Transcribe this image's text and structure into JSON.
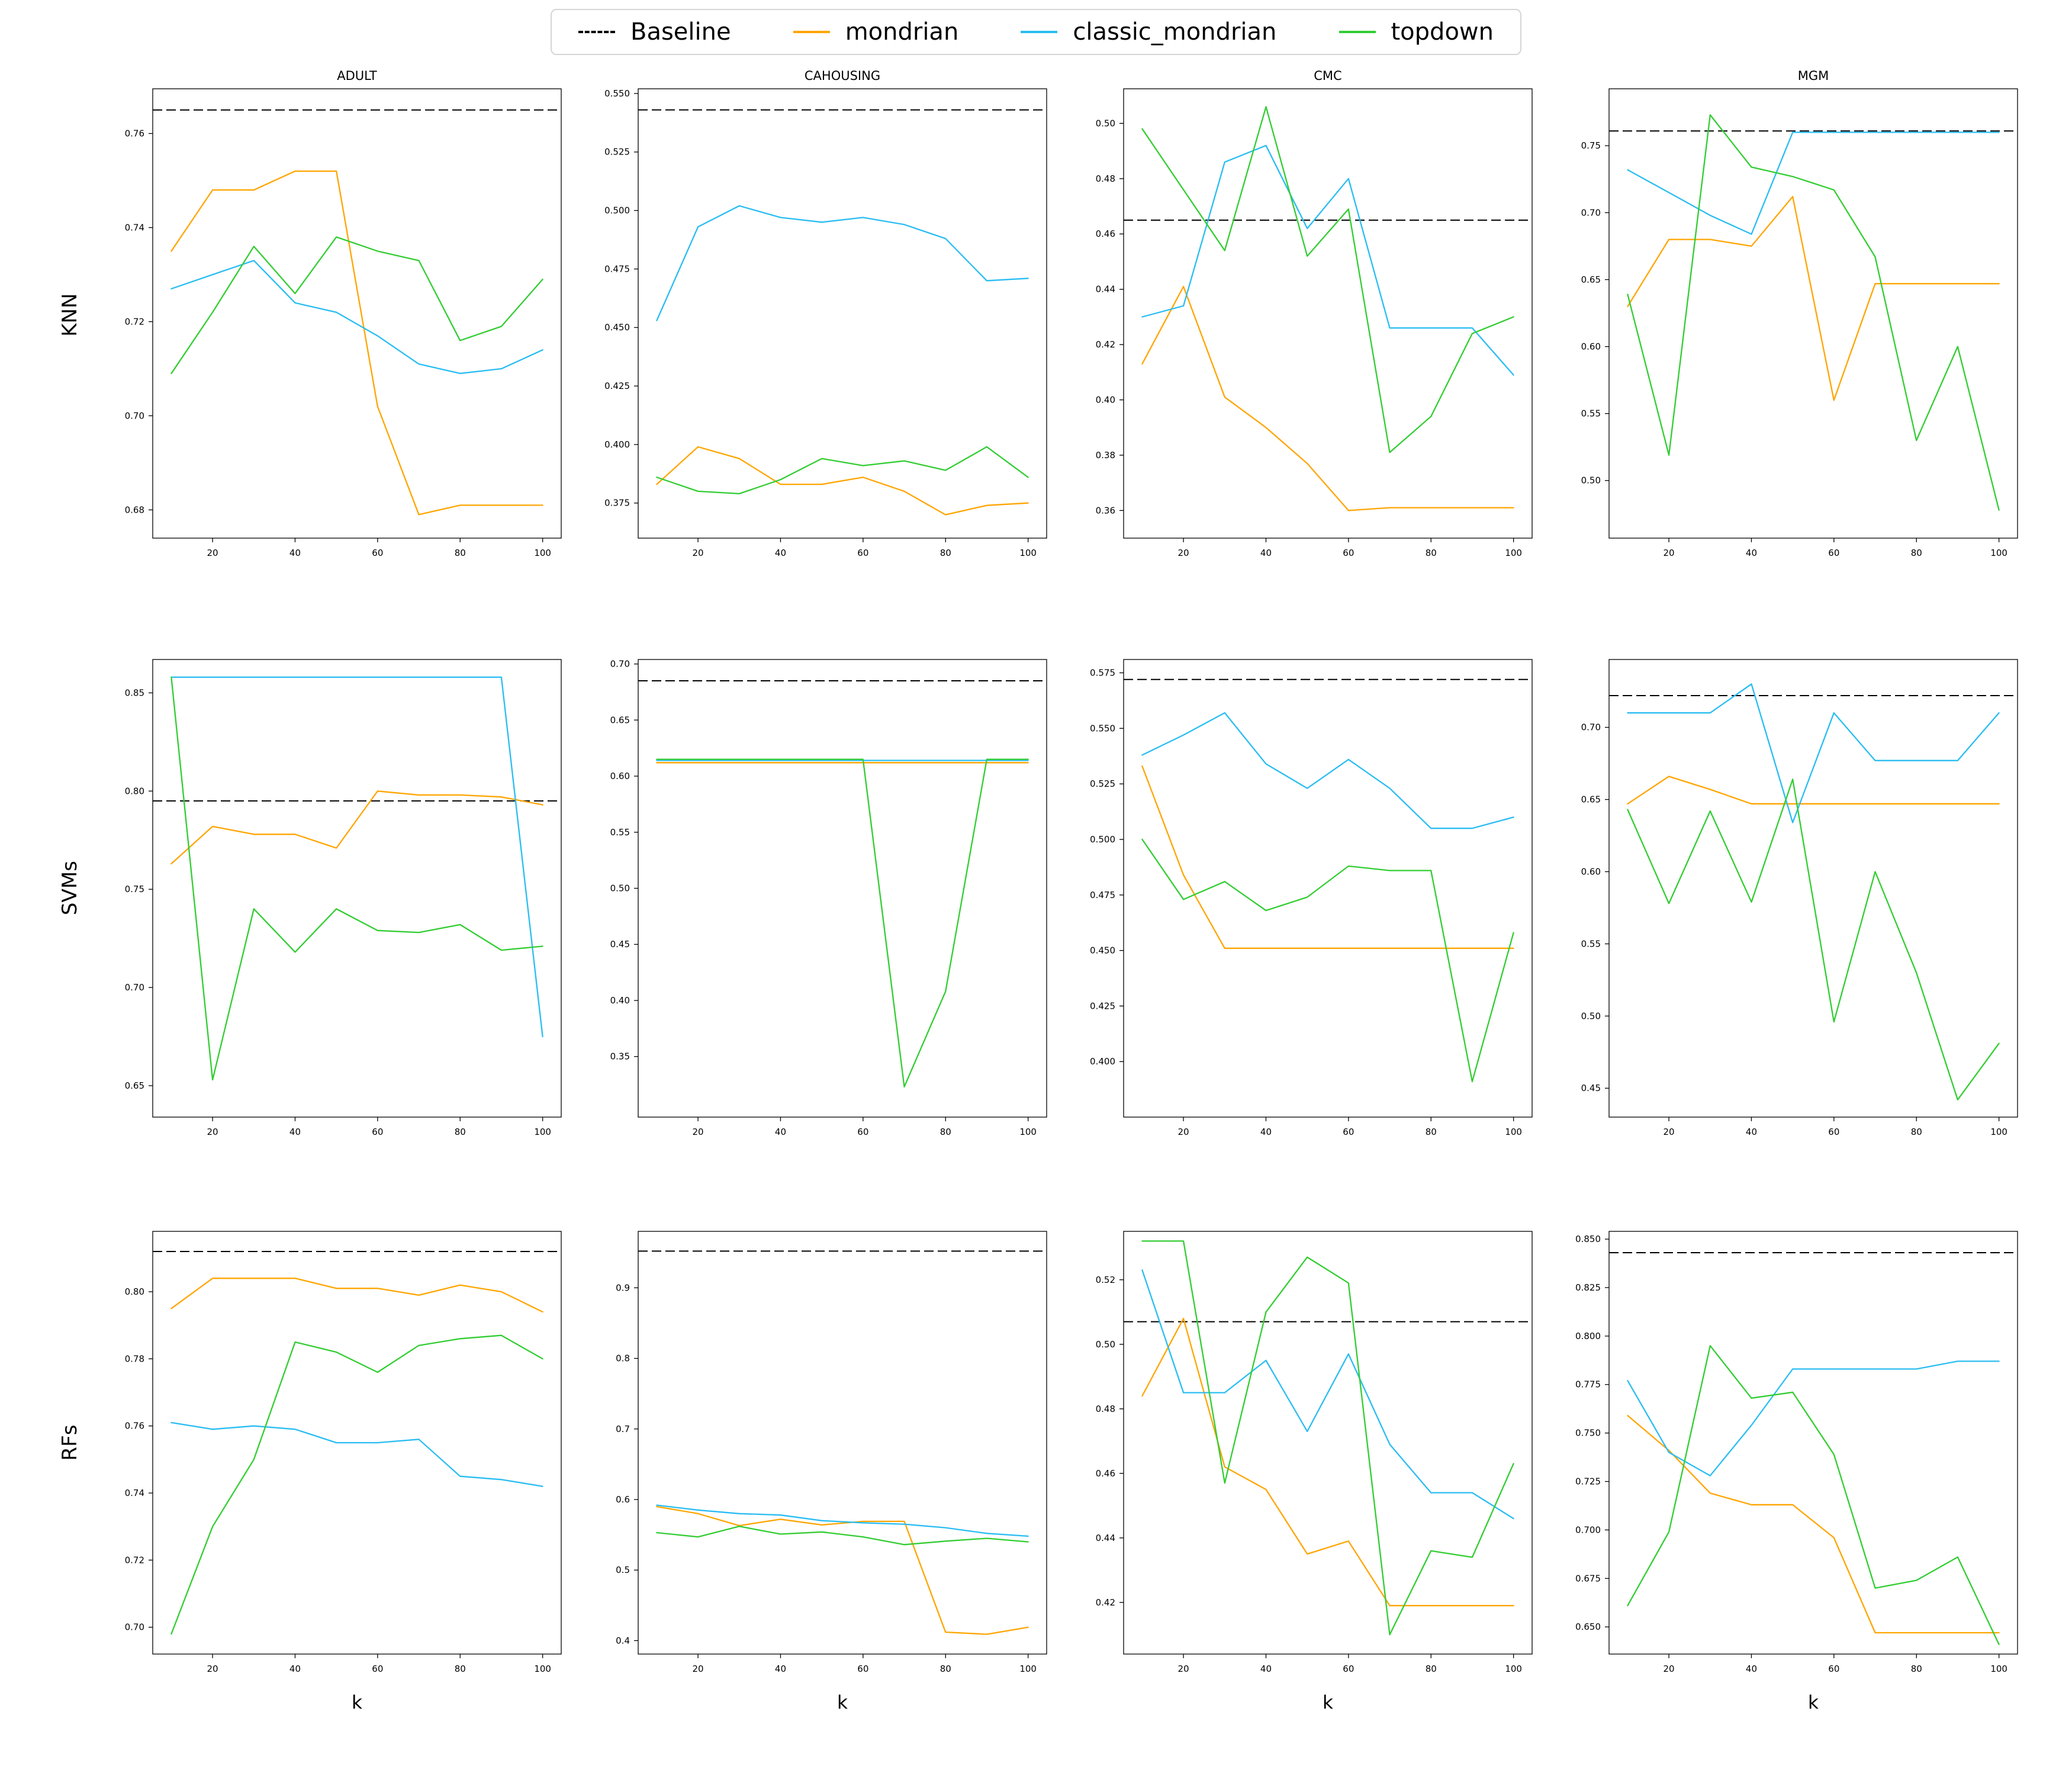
{
  "legend": {
    "items": [
      {
        "label": "Baseline",
        "color": "#000000",
        "style": "dashed"
      },
      {
        "label": "mondrian",
        "color": "#FFA500",
        "style": "solid"
      },
      {
        "label": "classic_mondrian",
        "color": "#29BDF2",
        "style": "solid"
      },
      {
        "label": "topdown",
        "color": "#32CD32",
        "style": "solid"
      }
    ]
  },
  "row_labels": [
    "KNN",
    "SVMs",
    "RFs"
  ],
  "col_titles": [
    "ADULT",
    "CAHOUSING",
    "CMC",
    "MGM"
  ],
  "chart_data": {
    "type": "line",
    "grid": "3 rows (classifiers) x 4 cols (datasets)",
    "xlabel": "k",
    "x": [
      10,
      20,
      30,
      40,
      50,
      60,
      70,
      80,
      90,
      100
    ],
    "xticks": [
      20,
      40,
      60,
      80,
      100
    ],
    "xlim": [
      5.5,
      104.5
    ],
    "plots": [
      {
        "model": "KNN",
        "title": "ADULT",
        "ylim": [
          0.674,
          0.7695
        ],
        "baseline": 0.765,
        "yticks": [
          "0.68",
          "0.70",
          "0.72",
          "0.74",
          "0.76"
        ],
        "series": [
          {
            "name": "mondrian",
            "values": [
              0.735,
              0.748,
              0.748,
              0.752,
              0.752,
              0.702,
              0.679,
              0.681,
              0.681,
              0.681
            ]
          },
          {
            "name": "classic_mondrian",
            "values": [
              0.727,
              0.73,
              0.733,
              0.724,
              0.722,
              0.717,
              0.711,
              0.709,
              0.71,
              0.714
            ]
          },
          {
            "name": "topdown",
            "values": [
              0.709,
              0.722,
              0.736,
              0.726,
              0.738,
              0.735,
              0.733,
              0.716,
              0.719,
              0.729
            ]
          }
        ]
      },
      {
        "model": "KNN",
        "title": "CAHOUSING",
        "ylim": [
          0.36,
          0.552
        ],
        "baseline": 0.543,
        "yticks": [
          "0.375",
          "0.400",
          "0.425",
          "0.450",
          "0.475",
          "0.500",
          "0.525",
          "0.550"
        ],
        "series": [
          {
            "name": "mondrian",
            "values": [
              0.383,
              0.399,
              0.394,
              0.383,
              0.383,
              0.386,
              0.38,
              0.37,
              0.374,
              0.375
            ]
          },
          {
            "name": "classic_mondrian",
            "values": [
              0.453,
              0.493,
              0.502,
              0.497,
              0.495,
              0.497,
              0.494,
              0.488,
              0.47,
              0.471
            ]
          },
          {
            "name": "topdown",
            "values": [
              0.386,
              0.38,
              0.379,
              0.385,
              0.394,
              0.391,
              0.393,
              0.389,
              0.399,
              0.386
            ]
          }
        ]
      },
      {
        "model": "KNN",
        "title": "CMC",
        "ylim": [
          0.35,
          0.5125
        ],
        "baseline": 0.465,
        "yticks": [
          "0.36",
          "0.38",
          "0.40",
          "0.42",
          "0.44",
          "0.46",
          "0.48",
          "0.50"
        ],
        "series": [
          {
            "name": "mondrian",
            "values": [
              0.413,
              0.441,
              0.401,
              0.39,
              0.377,
              0.36,
              0.361,
              0.361,
              0.361,
              0.361
            ]
          },
          {
            "name": "classic_mondrian",
            "values": [
              0.43,
              0.434,
              0.486,
              0.492,
              0.462,
              0.48,
              0.426,
              0.426,
              0.426,
              0.409
            ]
          },
          {
            "name": "topdown",
            "values": [
              0.498,
              0.476,
              0.454,
              0.506,
              0.452,
              0.469,
              0.381,
              0.394,
              0.424,
              0.43
            ]
          }
        ]
      },
      {
        "model": "KNN",
        "title": "MGM",
        "ylim": [
          0.457,
          0.7925
        ],
        "baseline": 0.761,
        "yticks": [
          "0.50",
          "0.55",
          "0.60",
          "0.65",
          "0.70",
          "0.75"
        ],
        "series": [
          {
            "name": "mondrian",
            "values": [
              0.63,
              0.68,
              0.68,
              0.675,
              0.712,
              0.56,
              0.647,
              0.647,
              0.647,
              0.647
            ]
          },
          {
            "name": "classic_mondrian",
            "values": [
              0.732,
              0.715,
              0.698,
              0.684,
              0.76,
              0.76,
              0.76,
              0.76,
              0.76,
              0.76
            ]
          },
          {
            "name": "topdown",
            "values": [
              0.639,
              0.519,
              0.773,
              0.734,
              0.727,
              0.717,
              0.667,
              0.53,
              0.6,
              0.478
            ]
          }
        ]
      },
      {
        "model": "SVMs",
        "title": "ADULT",
        "ylim": [
          0.634,
          0.867
        ],
        "baseline": 0.795,
        "yticks": [
          "0.65",
          "0.70",
          "0.75",
          "0.80",
          "0.85"
        ],
        "series": [
          {
            "name": "mondrian",
            "values": [
              0.763,
              0.782,
              0.778,
              0.778,
              0.771,
              0.8,
              0.798,
              0.798,
              0.797,
              0.793
            ]
          },
          {
            "name": "classic_mondrian",
            "values": [
              0.858,
              0.858,
              0.858,
              0.858,
              0.858,
              0.858,
              0.858,
              0.858,
              0.858,
              0.675
            ]
          },
          {
            "name": "topdown",
            "values": [
              0.858,
              0.653,
              0.74,
              0.718,
              0.74,
              0.729,
              0.728,
              0.732,
              0.719,
              0.721
            ]
          }
        ]
      },
      {
        "model": "SVMs",
        "title": "CAHOUSING",
        "ylim": [
          0.296,
          0.704
        ],
        "baseline": 0.685,
        "yticks": [
          "0.35",
          "0.40",
          "0.45",
          "0.50",
          "0.55",
          "0.60",
          "0.65",
          "0.70"
        ],
        "series": [
          {
            "name": "mondrian",
            "values": [
              0.612,
              0.612,
              0.612,
              0.612,
              0.612,
              0.612,
              0.612,
              0.612,
              0.612,
              0.612
            ]
          },
          {
            "name": "classic_mondrian",
            "values": [
              0.614,
              0.614,
              0.614,
              0.614,
              0.614,
              0.614,
              0.614,
              0.614,
              0.614,
              0.614
            ]
          },
          {
            "name": "topdown",
            "values": [
              0.615,
              0.615,
              0.615,
              0.615,
              0.615,
              0.615,
              0.323,
              0.408,
              0.615,
              0.615
            ]
          }
        ]
      },
      {
        "model": "SVMs",
        "title": "CMC",
        "ylim": [
          0.375,
          0.581
        ],
        "baseline": 0.572,
        "yticks": [
          "0.400",
          "0.425",
          "0.450",
          "0.475",
          "0.500",
          "0.525",
          "0.550",
          "0.575"
        ],
        "series": [
          {
            "name": "mondrian",
            "values": [
              0.533,
              0.484,
              0.451,
              0.451,
              0.451,
              0.451,
              0.451,
              0.451,
              0.451,
              0.451
            ]
          },
          {
            "name": "classic_mondrian",
            "values": [
              0.538,
              0.547,
              0.557,
              0.534,
              0.523,
              0.536,
              0.523,
              0.505,
              0.505,
              0.51
            ]
          },
          {
            "name": "topdown",
            "values": [
              0.5,
              0.473,
              0.481,
              0.468,
              0.474,
              0.488,
              0.486,
              0.486,
              0.391,
              0.458
            ]
          }
        ]
      },
      {
        "model": "SVMs",
        "title": "MGM",
        "ylim": [
          0.43,
          0.747
        ],
        "baseline": 0.722,
        "yticks": [
          "0.45",
          "0.50",
          "0.55",
          "0.60",
          "0.65",
          "0.70"
        ],
        "series": [
          {
            "name": "mondrian",
            "values": [
              0.647,
              0.666,
              0.657,
              0.647,
              0.647,
              0.647,
              0.647,
              0.647,
              0.647,
              0.647
            ]
          },
          {
            "name": "classic_mondrian",
            "values": [
              0.71,
              0.71,
              0.71,
              0.73,
              0.634,
              0.71,
              0.677,
              0.677,
              0.677,
              0.71
            ]
          },
          {
            "name": "topdown",
            "values": [
              0.643,
              0.578,
              0.642,
              0.579,
              0.664,
              0.496,
              0.6,
              0.53,
              0.442,
              0.481
            ]
          }
        ]
      },
      {
        "model": "RFs",
        "title": "ADULT",
        "ylim": [
          0.692,
          0.818
        ],
        "baseline": 0.812,
        "yticks": [
          "0.70",
          "0.72",
          "0.74",
          "0.76",
          "0.78",
          "0.80"
        ],
        "series": [
          {
            "name": "mondrian",
            "values": [
              0.795,
              0.804,
              0.804,
              0.804,
              0.801,
              0.801,
              0.799,
              0.802,
              0.8,
              0.794
            ]
          },
          {
            "name": "classic_mondrian",
            "values": [
              0.761,
              0.759,
              0.76,
              0.759,
              0.755,
              0.755,
              0.756,
              0.745,
              0.744,
              0.742
            ]
          },
          {
            "name": "topdown",
            "values": [
              0.698,
              0.73,
              0.75,
              0.785,
              0.782,
              0.776,
              0.784,
              0.786,
              0.787,
              0.78
            ]
          }
        ]
      },
      {
        "model": "RFs",
        "title": "CAHOUSING",
        "ylim": [
          0.381,
          0.98
        ],
        "baseline": 0.952,
        "yticks": [
          "0.4",
          "0.5",
          "0.6",
          "0.7",
          "0.8",
          "0.9"
        ],
        "series": [
          {
            "name": "mondrian",
            "values": [
              0.59,
              0.58,
              0.563,
              0.572,
              0.564,
              0.569,
              0.569,
              0.412,
              0.409,
              0.419
            ]
          },
          {
            "name": "classic_mondrian",
            "values": [
              0.592,
              0.585,
              0.58,
              0.578,
              0.57,
              0.567,
              0.565,
              0.56,
              0.552,
              0.548
            ]
          },
          {
            "name": "topdown",
            "values": [
              0.553,
              0.547,
              0.562,
              0.551,
              0.554,
              0.547,
              0.536,
              0.541,
              0.545,
              0.54
            ]
          }
        ]
      },
      {
        "model": "RFs",
        "title": "CMC",
        "ylim": [
          0.404,
          0.535
        ],
        "baseline": 0.507,
        "yticks": [
          "0.42",
          "0.44",
          "0.46",
          "0.48",
          "0.50",
          "0.52"
        ],
        "series": [
          {
            "name": "mondrian",
            "values": [
              0.484,
              0.508,
              0.462,
              0.455,
              0.435,
              0.439,
              0.419,
              0.419,
              0.419,
              0.419
            ]
          },
          {
            "name": "classic_mondrian",
            "values": [
              0.523,
              0.485,
              0.485,
              0.495,
              0.473,
              0.497,
              0.469,
              0.454,
              0.454,
              0.446
            ]
          },
          {
            "name": "topdown",
            "values": [
              0.532,
              0.532,
              0.457,
              0.51,
              0.527,
              0.519,
              0.41,
              0.436,
              0.434,
              0.463
            ]
          }
        ]
      },
      {
        "model": "RFs",
        "title": "MGM",
        "ylim": [
          0.636,
          0.854
        ],
        "baseline": 0.843,
        "yticks": [
          "0.650",
          "0.675",
          "0.700",
          "0.725",
          "0.750",
          "0.775",
          "0.800",
          "0.825",
          "0.850"
        ],
        "series": [
          {
            "name": "mondrian",
            "values": [
              0.759,
              0.741,
              0.719,
              0.713,
              0.713,
              0.696,
              0.647,
              0.647,
              0.647,
              0.647
            ]
          },
          {
            "name": "classic_mondrian",
            "values": [
              0.777,
              0.74,
              0.728,
              0.754,
              0.783,
              0.783,
              0.783,
              0.783,
              0.787,
              0.787
            ]
          },
          {
            "name": "topdown",
            "values": [
              0.661,
              0.699,
              0.795,
              0.768,
              0.771,
              0.739,
              0.67,
              0.674,
              0.686,
              0.641
            ]
          }
        ]
      }
    ]
  }
}
